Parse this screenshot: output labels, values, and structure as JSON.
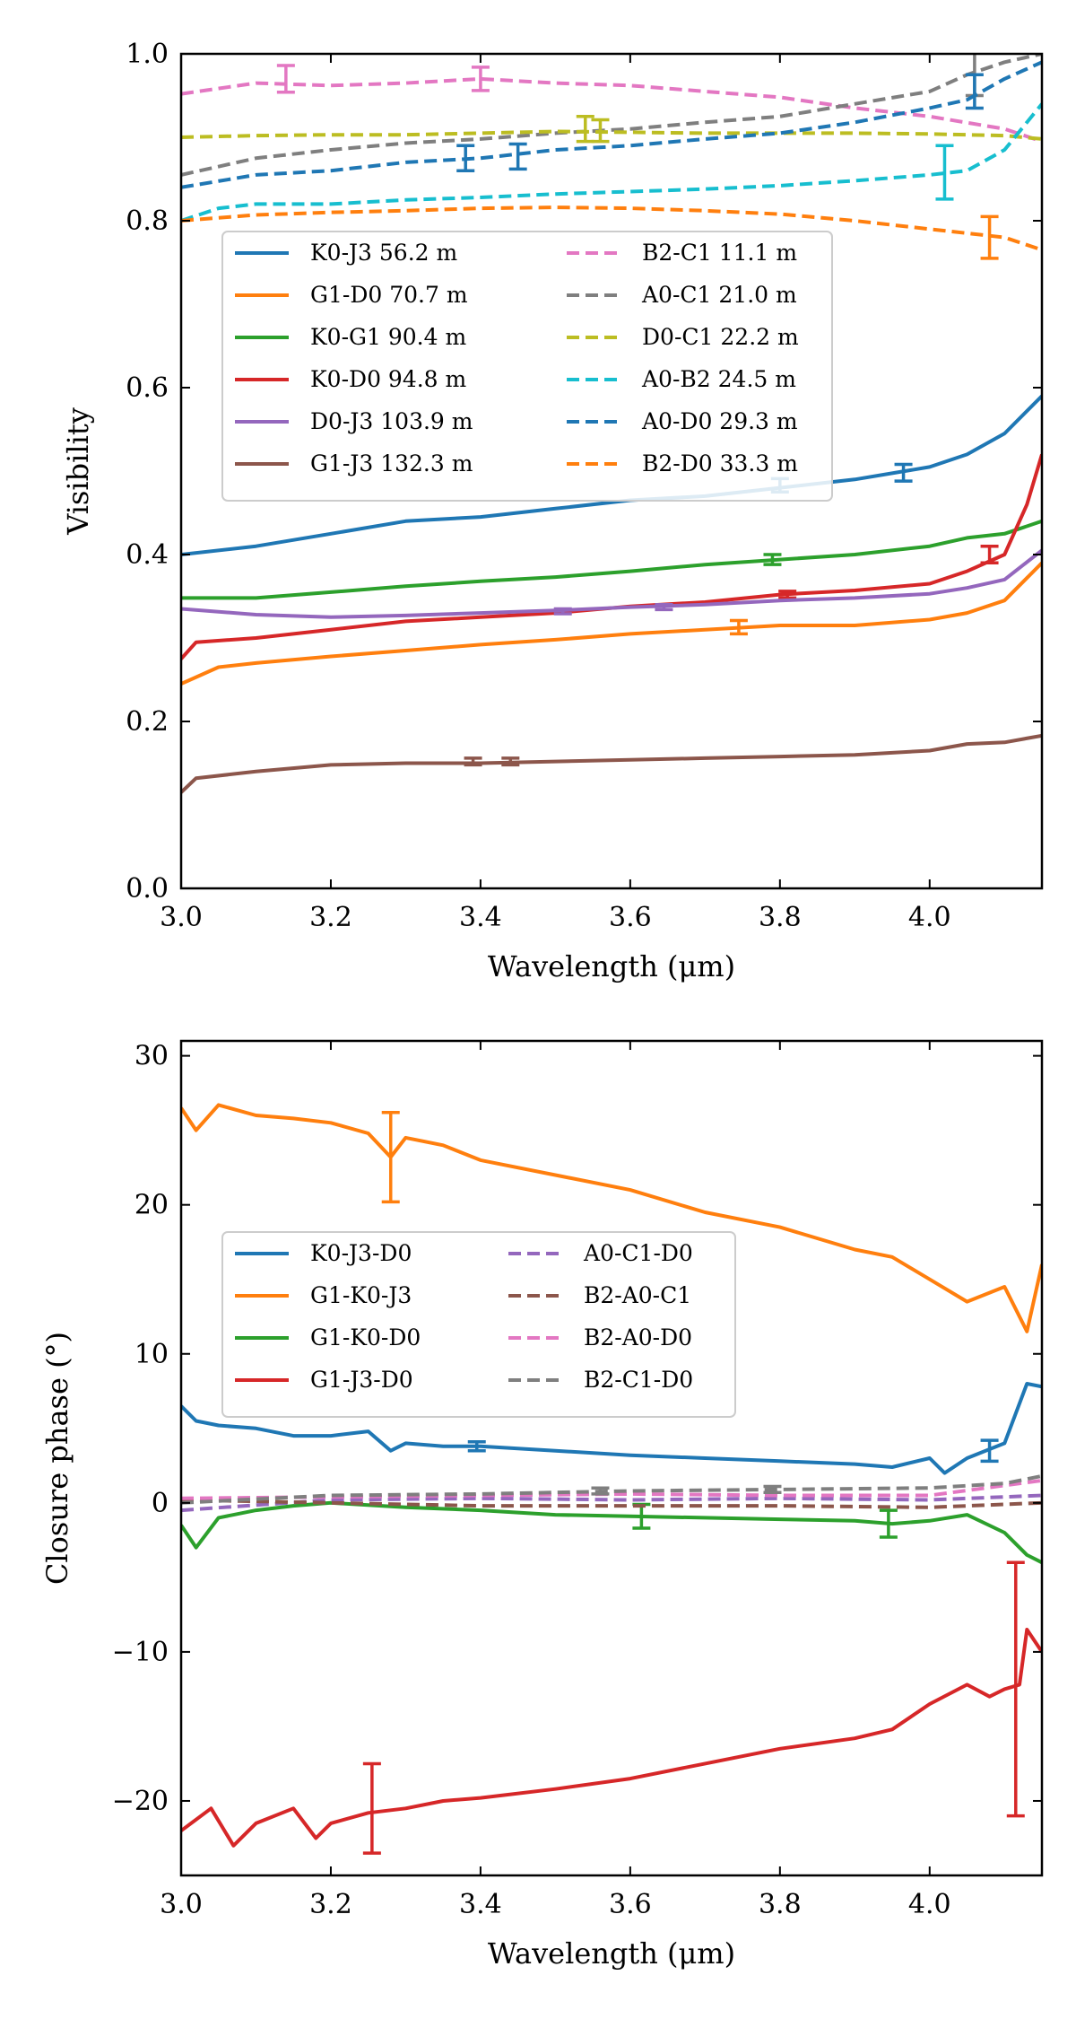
{
  "chart_data": [
    {
      "type": "line",
      "xlabel": "Wavelength (μm)",
      "ylabel": "Visibility",
      "xlim": [
        3.0,
        4.15
      ],
      "ylim": [
        0.0,
        1.0
      ],
      "xticks": [
        "3.0",
        "3.2",
        "3.4",
        "3.6",
        "3.8",
        "4.0"
      ],
      "yticks": [
        "0.0",
        "0.2",
        "0.4",
        "0.6",
        "0.8",
        "1.0"
      ],
      "legend_position": "upper-left",
      "series": [
        {
          "name": "K0-J3 56.2 m",
          "color": "#1f77b4",
          "style": "solid",
          "x": [
            3.0,
            3.1,
            3.2,
            3.3,
            3.4,
            3.5,
            3.6,
            3.7,
            3.8,
            3.9,
            4.0,
            4.05,
            4.1,
            4.15
          ],
          "y": [
            0.4,
            0.41,
            0.425,
            0.44,
            0.445,
            0.455,
            0.465,
            0.47,
            0.48,
            0.49,
            0.505,
            0.52,
            0.545,
            0.59
          ],
          "errorbars": [
            {
              "x": 3.8,
              "y": 0.483,
              "err": 0.008
            },
            {
              "x": 3.965,
              "y": 0.498,
              "err": 0.01
            }
          ]
        },
        {
          "name": "G1-D0 70.7 m",
          "color": "#ff7f0e",
          "style": "solid",
          "x": [
            3.0,
            3.05,
            3.1,
            3.2,
            3.3,
            3.4,
            3.5,
            3.6,
            3.7,
            3.8,
            3.9,
            4.0,
            4.05,
            4.1,
            4.15
          ],
          "y": [
            0.245,
            0.265,
            0.27,
            0.278,
            0.285,
            0.292,
            0.298,
            0.305,
            0.31,
            0.315,
            0.315,
            0.322,
            0.33,
            0.345,
            0.39
          ],
          "errorbars": [
            {
              "x": 3.745,
              "y": 0.313,
              "err": 0.008
            }
          ]
        },
        {
          "name": "K0-G1 90.4 m",
          "color": "#2ca02c",
          "style": "solid",
          "x": [
            3.0,
            3.1,
            3.2,
            3.3,
            3.4,
            3.5,
            3.6,
            3.7,
            3.8,
            3.9,
            4.0,
            4.05,
            4.1,
            4.15
          ],
          "y": [
            0.348,
            0.348,
            0.355,
            0.362,
            0.368,
            0.373,
            0.38,
            0.388,
            0.394,
            0.4,
            0.41,
            0.42,
            0.425,
            0.44
          ],
          "errorbars": [
            {
              "x": 3.79,
              "y": 0.394,
              "err": 0.006
            }
          ]
        },
        {
          "name": "K0-D0 94.8 m",
          "color": "#d62728",
          "style": "solid",
          "x": [
            3.0,
            3.02,
            3.1,
            3.2,
            3.3,
            3.4,
            3.5,
            3.6,
            3.7,
            3.8,
            3.9,
            4.0,
            4.05,
            4.1,
            4.13,
            4.15
          ],
          "y": [
            0.275,
            0.295,
            0.3,
            0.31,
            0.32,
            0.325,
            0.33,
            0.338,
            0.343,
            0.352,
            0.357,
            0.365,
            0.38,
            0.4,
            0.46,
            0.52
          ],
          "errorbars": [
            {
              "x": 3.81,
              "y": 0.352,
              "err": 0.004
            },
            {
              "x": 4.08,
              "y": 0.4,
              "err": 0.01
            }
          ]
        },
        {
          "name": "D0-J3 103.9 m",
          "color": "#9467bd",
          "style": "solid",
          "x": [
            3.0,
            3.1,
            3.2,
            3.3,
            3.4,
            3.5,
            3.6,
            3.7,
            3.8,
            3.9,
            4.0,
            4.05,
            4.1,
            4.15
          ],
          "y": [
            0.335,
            0.328,
            0.325,
            0.327,
            0.33,
            0.333,
            0.337,
            0.34,
            0.345,
            0.348,
            0.353,
            0.36,
            0.37,
            0.405
          ],
          "errorbars": [
            {
              "x": 3.51,
              "y": 0.332,
              "err": 0.003
            },
            {
              "x": 3.645,
              "y": 0.337,
              "err": 0.003
            }
          ]
        },
        {
          "name": "G1-J3 132.3 m",
          "color": "#8c564b",
          "style": "solid",
          "x": [
            3.0,
            3.02,
            3.1,
            3.2,
            3.3,
            3.4,
            3.5,
            3.6,
            3.7,
            3.8,
            3.9,
            4.0,
            4.05,
            4.1,
            4.15
          ],
          "y": [
            0.115,
            0.132,
            0.14,
            0.148,
            0.15,
            0.15,
            0.152,
            0.154,
            0.156,
            0.158,
            0.16,
            0.165,
            0.173,
            0.175,
            0.183
          ],
          "errorbars": [
            {
              "x": 3.39,
              "y": 0.152,
              "err": 0.004
            },
            {
              "x": 3.44,
              "y": 0.152,
              "err": 0.004
            }
          ]
        },
        {
          "name": "B2-C1 11.1 m",
          "color": "#e377c2",
          "style": "dashed",
          "x": [
            3.0,
            3.1,
            3.2,
            3.3,
            3.4,
            3.5,
            3.6,
            3.7,
            3.8,
            3.9,
            4.0,
            4.1,
            4.15
          ],
          "y": [
            0.952,
            0.965,
            0.962,
            0.965,
            0.97,
            0.965,
            0.962,
            0.955,
            0.948,
            0.935,
            0.925,
            0.91,
            0.895
          ],
          "errorbars": [
            {
              "x": 3.14,
              "y": 0.97,
              "err": 0.016
            },
            {
              "x": 3.4,
              "y": 0.97,
              "err": 0.014
            }
          ]
        },
        {
          "name": "A0-C1 21.0 m",
          "color": "#7f7f7f",
          "style": "dashed",
          "x": [
            3.0,
            3.1,
            3.2,
            3.3,
            3.4,
            3.5,
            3.6,
            3.7,
            3.8,
            3.9,
            4.0,
            4.05,
            4.1,
            4.15
          ],
          "y": [
            0.855,
            0.875,
            0.885,
            0.893,
            0.898,
            0.905,
            0.91,
            0.918,
            0.925,
            0.94,
            0.955,
            0.975,
            0.99,
            1.0
          ],
          "errorbars": [
            {
              "x": 4.06,
              "y": 0.99,
              "err": 0.04
            }
          ]
        },
        {
          "name": "D0-C1 22.2 m",
          "color": "#bcbd22",
          "style": "dashed",
          "x": [
            3.0,
            3.1,
            3.2,
            3.3,
            3.4,
            3.5,
            3.6,
            3.7,
            3.8,
            3.9,
            4.0,
            4.1,
            4.15
          ],
          "y": [
            0.9,
            0.902,
            0.903,
            0.903,
            0.905,
            0.907,
            0.906,
            0.905,
            0.905,
            0.905,
            0.904,
            0.902,
            0.898
          ],
          "errorbars": [
            {
              "x": 3.54,
              "y": 0.91,
              "err": 0.015
            },
            {
              "x": 3.56,
              "y": 0.908,
              "err": 0.013
            }
          ]
        },
        {
          "name": "A0-B2 24.5 m",
          "color": "#17becf",
          "style": "dashed",
          "x": [
            3.0,
            3.05,
            3.1,
            3.2,
            3.3,
            3.4,
            3.5,
            3.6,
            3.7,
            3.8,
            3.9,
            4.0,
            4.05,
            4.1,
            4.15
          ],
          "y": [
            0.8,
            0.815,
            0.82,
            0.82,
            0.825,
            0.828,
            0.832,
            0.835,
            0.838,
            0.842,
            0.848,
            0.855,
            0.86,
            0.885,
            0.94
          ],
          "errorbars": [
            {
              "x": 4.02,
              "y": 0.858,
              "err": 0.032
            }
          ]
        },
        {
          "name": "A0-D0 29.3 m",
          "color": "#1f77b4",
          "style": "dashed",
          "x": [
            3.0,
            3.1,
            3.2,
            3.3,
            3.4,
            3.5,
            3.6,
            3.7,
            3.8,
            3.9,
            4.0,
            4.05,
            4.1,
            4.15
          ],
          "y": [
            0.84,
            0.855,
            0.86,
            0.87,
            0.875,
            0.885,
            0.89,
            0.898,
            0.905,
            0.918,
            0.935,
            0.945,
            0.97,
            0.99
          ],
          "errorbars": [
            {
              "x": 3.38,
              "y": 0.875,
              "err": 0.015
            },
            {
              "x": 3.45,
              "y": 0.877,
              "err": 0.015
            },
            {
              "x": 4.06,
              "y": 0.955,
              "err": 0.02
            }
          ]
        },
        {
          "name": "B2-D0 33.3 m",
          "color": "#ff7f0e",
          "style": "dashed",
          "x": [
            3.0,
            3.1,
            3.2,
            3.3,
            3.4,
            3.5,
            3.6,
            3.7,
            3.8,
            3.9,
            4.0,
            4.05,
            4.1,
            4.15
          ],
          "y": [
            0.8,
            0.807,
            0.81,
            0.812,
            0.815,
            0.816,
            0.815,
            0.812,
            0.808,
            0.8,
            0.79,
            0.785,
            0.78,
            0.765
          ],
          "errorbars": [
            {
              "x": 4.08,
              "y": 0.78,
              "err": 0.025
            }
          ]
        }
      ]
    },
    {
      "type": "line",
      "xlabel": "Wavelength (μm)",
      "ylabel": "Closure phase (°)",
      "xlim": [
        3.0,
        4.15
      ],
      "ylim": [
        -25,
        31
      ],
      "xticks": [
        "3.0",
        "3.2",
        "3.4",
        "3.6",
        "3.8",
        "4.0"
      ],
      "yticks": [
        "−20",
        "−10",
        "0",
        "10",
        "20",
        "30"
      ],
      "legend_position": "upper-left",
      "series": [
        {
          "name": "K0-J3-D0",
          "color": "#1f77b4",
          "style": "solid",
          "x": [
            3.0,
            3.02,
            3.05,
            3.1,
            3.15,
            3.2,
            3.25,
            3.28,
            3.3,
            3.35,
            3.4,
            3.5,
            3.6,
            3.7,
            3.8,
            3.9,
            3.95,
            4.0,
            4.02,
            4.05,
            4.1,
            4.13,
            4.15
          ],
          "y": [
            6.5,
            5.5,
            5.2,
            5.0,
            4.5,
            4.5,
            4.8,
            3.5,
            4.0,
            3.8,
            3.8,
            3.5,
            3.2,
            3.0,
            2.8,
            2.6,
            2.4,
            3.0,
            2.0,
            3.0,
            4.0,
            8.0,
            7.8
          ],
          "errorbars": [
            {
              "x": 3.395,
              "y": 3.8,
              "err": 0.3
            },
            {
              "x": 4.08,
              "y": 3.5,
              "err": 0.7
            }
          ]
        },
        {
          "name": "G1-K0-J3",
          "color": "#ff7f0e",
          "style": "solid",
          "x": [
            3.0,
            3.02,
            3.05,
            3.1,
            3.15,
            3.2,
            3.25,
            3.28,
            3.3,
            3.35,
            3.4,
            3.5,
            3.6,
            3.7,
            3.8,
            3.9,
            3.95,
            4.0,
            4.05,
            4.1,
            4.13,
            4.15
          ],
          "y": [
            26.5,
            25.0,
            26.7,
            26.0,
            25.8,
            25.5,
            24.8,
            23.2,
            24.5,
            24.0,
            23.0,
            22.0,
            21.0,
            19.5,
            18.5,
            17.0,
            16.5,
            15.0,
            13.5,
            14.5,
            11.5,
            16.0
          ],
          "errorbars": [
            {
              "x": 3.28,
              "y": 23.2,
              "err": 3.0
            }
          ]
        },
        {
          "name": "G1-K0-D0",
          "color": "#2ca02c",
          "style": "solid",
          "x": [
            3.0,
            3.02,
            3.05,
            3.1,
            3.15,
            3.2,
            3.3,
            3.4,
            3.5,
            3.6,
            3.7,
            3.8,
            3.9,
            3.95,
            4.0,
            4.05,
            4.1,
            4.13,
            4.15
          ],
          "y": [
            -1.5,
            -3.0,
            -1.0,
            -0.5,
            -0.2,
            0.0,
            -0.3,
            -0.5,
            -0.8,
            -0.9,
            -1.0,
            -1.1,
            -1.2,
            -1.4,
            -1.2,
            -0.8,
            -2.0,
            -3.5,
            -4.0
          ],
          "errorbars": [
            {
              "x": 3.615,
              "y": -0.9,
              "err": 0.8
            },
            {
              "x": 3.945,
              "y": -1.4,
              "err": 0.9
            }
          ]
        },
        {
          "name": "G1-J3-D0",
          "color": "#d62728",
          "style": "solid",
          "x": [
            3.0,
            3.04,
            3.07,
            3.1,
            3.15,
            3.18,
            3.2,
            3.25,
            3.3,
            3.35,
            3.4,
            3.5,
            3.6,
            3.7,
            3.8,
            3.9,
            3.95,
            4.0,
            4.05,
            4.08,
            4.1,
            4.12,
            4.13,
            4.15
          ],
          "y": [
            -22,
            -20.5,
            -23,
            -21.5,
            -20.5,
            -22.5,
            -21.5,
            -20.8,
            -20.5,
            -20.0,
            -19.8,
            -19.2,
            -18.5,
            -17.5,
            -16.5,
            -15.8,
            -15.2,
            -13.5,
            -12.2,
            -13.0,
            -12.5,
            -12.2,
            -8.5,
            -10.0
          ],
          "errorbars": [
            {
              "x": 3.255,
              "y": -20.5,
              "err": 3.0
            },
            {
              "x": 4.115,
              "y": -12.5,
              "err": 8.5
            }
          ]
        },
        {
          "name": "A0-C1-D0",
          "color": "#9467bd",
          "style": "dashed",
          "x": [
            3.0,
            3.2,
            3.4,
            3.6,
            3.8,
            4.0,
            4.15
          ],
          "y": [
            -0.5,
            0.2,
            0.3,
            0.2,
            0.3,
            0.2,
            0.5
          ],
          "errorbars": []
        },
        {
          "name": "B2-A0-C1",
          "color": "#8c564b",
          "style": "dashed",
          "x": [
            3.0,
            3.2,
            3.4,
            3.6,
            3.8,
            4.0,
            4.15
          ],
          "y": [
            0.2,
            0.0,
            -0.2,
            -0.2,
            -0.2,
            -0.3,
            0.0
          ],
          "errorbars": []
        },
        {
          "name": "B2-A0-D0",
          "color": "#e377c2",
          "style": "dashed",
          "x": [
            3.0,
            3.2,
            3.4,
            3.6,
            3.8,
            4.0,
            4.15
          ],
          "y": [
            0.3,
            0.4,
            0.5,
            0.6,
            0.5,
            0.5,
            1.5
          ],
          "errorbars": []
        },
        {
          "name": "B2-C1-D0",
          "color": "#7f7f7f",
          "style": "dashed",
          "x": [
            3.0,
            3.2,
            3.4,
            3.6,
            3.8,
            4.0,
            4.1,
            4.15
          ],
          "y": [
            0.0,
            0.5,
            0.6,
            0.8,
            0.9,
            1.0,
            1.3,
            1.8
          ],
          "errorbars": [
            {
              "x": 3.56,
              "y": 0.8,
              "err": 0.2
            },
            {
              "x": 3.79,
              "y": 0.9,
              "err": 0.2
            }
          ]
        }
      ]
    }
  ]
}
